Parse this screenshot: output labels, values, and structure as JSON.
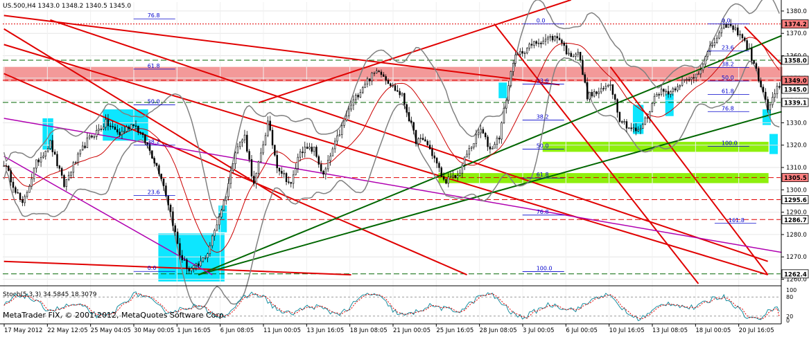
{
  "header": {
    "symbol_line": "US.500,H4  1343.0 1348.2 1340.5 1345.0"
  },
  "stoch": {
    "label": "Stoch(5,3,3) 34.5845 18.3079",
    "levels": [
      "100",
      "80",
      "20",
      "0"
    ]
  },
  "watermark": "MetaTrader FIX, © 2001-2012, MetaQuotes Software Corp.",
  "colors": {
    "background": "#ffffff",
    "resistance_line": "#e00000",
    "support_line": "#006600",
    "channel_line": "#b000b0",
    "bollinger": "#808080",
    "fib_text": "#0000cc",
    "pink_zone": "#f08080",
    "lime_zone": "#88ee00",
    "cyan_zone": "#00e5ff",
    "tag_highlight": "#ff8080"
  },
  "chart_data": [
    {
      "type": "candlestick",
      "title": "US.500,H4",
      "x_labels": [
        "17 May 2012",
        "22 May 12:05",
        "25 May 04:05",
        "30 May 00:05",
        "1 Jun 16:05",
        "6 Jun 08:05",
        "11 Jun 00:05",
        "13 Jun 16:05",
        "18 Jun 08:05",
        "21 Jun 00:05",
        "25 Jun 16:05",
        "28 Jun 08:05",
        "3 Jul 00:05",
        "6 Jul 00:05",
        "10 Jul 16:05",
        "13 Jul 08:05",
        "18 Jul 00:05",
        "20 Jul 16:05"
      ],
      "ylim": [
        1258,
        1384
      ],
      "y_ticks": [
        1260,
        1270,
        1280,
        1290,
        1300,
        1310,
        1320,
        1330,
        1340,
        1350,
        1360,
        1370,
        1380
      ],
      "y_tick_labels": [
        "1260.0",
        "1270.0",
        "1280.0",
        "1290.0",
        "1300.0",
        "1310.0",
        "1320.0",
        "1330.0",
        "1340.0",
        "1350.0",
        "1360.0",
        "1370.0",
        "1380.0"
      ],
      "horizontal_levels": [
        {
          "value": 1374.2,
          "label": "1374.2",
          "style": "dotted-red",
          "highlight": true
        },
        {
          "value": 1358.0,
          "label": "1358.0",
          "style": "dashed-green",
          "highlight": false
        },
        {
          "value": 1349.0,
          "label": "1349.0",
          "style": "dashed-red",
          "highlight": true
        },
        {
          "value": 1345.0,
          "label": "1345.0",
          "style": "price",
          "highlight": false
        },
        {
          "value": 1339.1,
          "label": "1339.1",
          "style": "dashed-green",
          "highlight": false
        },
        {
          "value": 1305.5,
          "label": "1305.5",
          "style": "dashed-red",
          "highlight": true
        },
        {
          "value": 1295.6,
          "label": "1295.6",
          "style": "dashed-red",
          "highlight": false
        },
        {
          "value": 1286.7,
          "label": "1286.7",
          "style": "dashed-red",
          "highlight": false
        },
        {
          "value": 1262.4,
          "label": "1262.4",
          "style": "dashed-green",
          "highlight": false
        }
      ],
      "fib_labels": [
        "76.8",
        "61.8",
        "50.0",
        "38.2",
        "23.6",
        "0.0",
        "0.0",
        "23.6",
        "38.2",
        "50.0",
        "61.8",
        "76.8",
        "100.0",
        "161.8",
        "0.0",
        "23.6",
        "38.2",
        "50.0",
        "61.8",
        "76.8",
        "100.0"
      ],
      "fib_levels": [
        {
          "label": "76.8",
          "price": 1376.5,
          "x_idx": 65
        },
        {
          "label": "61.8",
          "price": 1354.0,
          "x_idx": 65
        },
        {
          "label": "50.0",
          "price": 1338.0,
          "x_idx": 65
        },
        {
          "label": "38.2",
          "price": 1320.0,
          "x_idx": 65
        },
        {
          "label": "23.6",
          "price": 1297.5,
          "x_idx": 65
        },
        {
          "label": "0.0",
          "price": 1263.5,
          "x_idx": 65
        },
        {
          "label": "0.0",
          "price": 1374.2,
          "x_idx": 233
        },
        {
          "label": "23.6",
          "price": 1347.3,
          "x_idx": 233
        },
        {
          "label": "38.2",
          "price": 1331.2,
          "x_idx": 233
        },
        {
          "label": "50.0",
          "price": 1318.2,
          "x_idx": 233
        },
        {
          "label": "61.8",
          "price": 1305.3,
          "x_idx": 233
        },
        {
          "label": "76.8",
          "price": 1288.7,
          "x_idx": 233
        },
        {
          "label": "100.0",
          "price": 1263.4,
          "x_idx": 233
        },
        {
          "label": "161.8",
          "price": 1285.0,
          "x_idx": 316
        },
        {
          "label": "0.0",
          "price": 1374.2,
          "x_idx": 313
        },
        {
          "label": "23.6",
          "price": 1362.1,
          "x_idx": 313
        },
        {
          "label": "38.2",
          "price": 1354.7,
          "x_idx": 313
        },
        {
          "label": "50.0",
          "price": 1348.7,
          "x_idx": 313
        },
        {
          "label": "61.8",
          "price": 1342.7,
          "x_idx": 313
        },
        {
          "label": "76.8",
          "price": 1335.0,
          "x_idx": 313
        },
        {
          "label": "100.0",
          "price": 1319.5,
          "x_idx": 313
        }
      ],
      "trendlines": [
        {
          "kind": "resistance",
          "from": [
            0,
            1378
          ],
          "to": [
            240,
            1347
          ]
        },
        {
          "kind": "resistance",
          "from": [
            0,
            1372
          ],
          "to": [
            120,
            1296
          ]
        },
        {
          "kind": "resistance",
          "from": [
            0,
            1365
          ],
          "to": [
            330,
            1262
          ]
        },
        {
          "kind": "resistance",
          "from": [
            20,
            1376
          ],
          "to": [
            330,
            1268
          ]
        },
        {
          "kind": "resistance",
          "from": [
            0,
            1352
          ],
          "to": [
            200,
            1262
          ]
        },
        {
          "kind": "resistance",
          "from": [
            0,
            1268
          ],
          "to": [
            150,
            1262
          ]
        },
        {
          "kind": "resistance",
          "from": [
            110,
            1339
          ],
          "to": [
            245,
            1385
          ]
        },
        {
          "kind": "resistance",
          "from": [
            212,
            1374
          ],
          "to": [
            300,
            1258
          ]
        },
        {
          "kind": "resistance",
          "from": [
            262,
            1355
          ],
          "to": [
            330,
            1262
          ]
        },
        {
          "kind": "resistance",
          "from": [
            320,
            1373
          ],
          "to": [
            336,
            1356
          ]
        },
        {
          "kind": "support",
          "from": [
            84,
            1262
          ],
          "to": [
            336,
            1369
          ]
        },
        {
          "kind": "support",
          "from": [
            84,
            1262
          ],
          "to": [
            336,
            1335
          ]
        },
        {
          "kind": "channel",
          "from": [
            0,
            1332
          ],
          "to": [
            336,
            1272
          ]
        },
        {
          "kind": "channel",
          "from": [
            0,
            1315
          ],
          "to": [
            90,
            1262
          ]
        }
      ],
      "zones": [
        {
          "kind": "pink",
          "x_from": 0,
          "x_to": 336,
          "price_from": 1348.5,
          "price_to": 1355.0
        },
        {
          "kind": "lime",
          "x_from": 233,
          "x_to": 330,
          "price_from": 1317.0,
          "price_to": 1321.5
        },
        {
          "kind": "lime",
          "x_from": 188,
          "x_to": 330,
          "price_from": 1303.0,
          "price_to": 1307.5
        },
        {
          "kind": "cyan",
          "x_from": 67,
          "x_to": 95,
          "price_from": 1259,
          "price_to": 1280.5
        },
        {
          "kind": "cyan",
          "x_from": 43,
          "x_to": 62,
          "price_from": 1322,
          "price_to": 1336
        },
        {
          "kind": "cyan",
          "x_from": 17,
          "x_to": 21,
          "price_from": 1318,
          "price_to": 1332
        },
        {
          "kind": "cyan",
          "x_from": 93,
          "x_to": 96,
          "price_from": 1281,
          "price_to": 1293
        },
        {
          "kind": "cyan",
          "x_from": 214,
          "x_to": 217,
          "price_from": 1341,
          "price_to": 1348
        },
        {
          "kind": "cyan",
          "x_from": 272,
          "x_to": 276,
          "price_from": 1325,
          "price_to": 1338
        },
        {
          "kind": "cyan",
          "x_from": 286,
          "x_to": 289,
          "price_from": 1333,
          "price_to": 1343
        },
        {
          "kind": "cyan",
          "x_from": 328,
          "x_to": 331,
          "price_from": 1329,
          "price_to": 1336
        },
        {
          "kind": "cyan",
          "x_from": 331,
          "x_to": 334,
          "price_from": 1316,
          "price_to": 1325
        }
      ],
      "price_path": [
        [
          0,
          1312
        ],
        [
          8,
          1293
        ],
        [
          14,
          1312
        ],
        [
          20,
          1321
        ],
        [
          26,
          1302
        ],
        [
          30,
          1311
        ],
        [
          36,
          1322
        ],
        [
          44,
          1330
        ],
        [
          50,
          1325
        ],
        [
          56,
          1330
        ],
        [
          62,
          1320
        ],
        [
          68,
          1306
        ],
        [
          72,
          1290
        ],
        [
          76,
          1271
        ],
        [
          80,
          1264
        ],
        [
          84,
          1266
        ],
        [
          88,
          1272
        ],
        [
          92,
          1285
        ],
        [
          96,
          1298
        ],
        [
          100,
          1318
        ],
        [
          104,
          1324
        ],
        [
          108,
          1302
        ],
        [
          114,
          1330
        ],
        [
          118,
          1311
        ],
        [
          124,
          1302
        ],
        [
          128,
          1318
        ],
        [
          134,
          1318
        ],
        [
          138,
          1306
        ],
        [
          142,
          1318
        ],
        [
          146,
          1328
        ],
        [
          150,
          1338
        ],
        [
          156,
          1348
        ],
        [
          162,
          1354
        ],
        [
          168,
          1346
        ],
        [
          172,
          1342
        ],
        [
          178,
          1322
        ],
        [
          182,
          1322
        ],
        [
          186,
          1314
        ],
        [
          190,
          1304
        ],
        [
          196,
          1306
        ],
        [
          200,
          1316
        ],
        [
          206,
          1327
        ],
        [
          210,
          1318
        ],
        [
          214,
          1324
        ],
        [
          220,
          1358
        ],
        [
          224,
          1362
        ],
        [
          230,
          1366
        ],
        [
          236,
          1368
        ],
        [
          240,
          1368
        ],
        [
          244,
          1360
        ],
        [
          248,
          1362
        ],
        [
          252,
          1342
        ],
        [
          258,
          1344
        ],
        [
          262,
          1348
        ],
        [
          266,
          1332
        ],
        [
          270,
          1328
        ],
        [
          274,
          1326
        ],
        [
          278,
          1333
        ],
        [
          282,
          1344
        ],
        [
          288,
          1344
        ],
        [
          292,
          1348
        ],
        [
          296,
          1349
        ],
        [
          300,
          1353
        ],
        [
          306,
          1365
        ],
        [
          312,
          1374
        ],
        [
          318,
          1370
        ],
        [
          322,
          1362
        ],
        [
          326,
          1350
        ],
        [
          330,
          1336
        ],
        [
          334,
          1345
        ]
      ],
      "bars_count": 336
    },
    {
      "type": "line",
      "title": "Stoch(5,3,3)",
      "ylim": [
        0,
        100
      ],
      "levels": [
        20,
        80
      ],
      "main_value": 34.5845,
      "signal_value": 18.3079
    }
  ]
}
